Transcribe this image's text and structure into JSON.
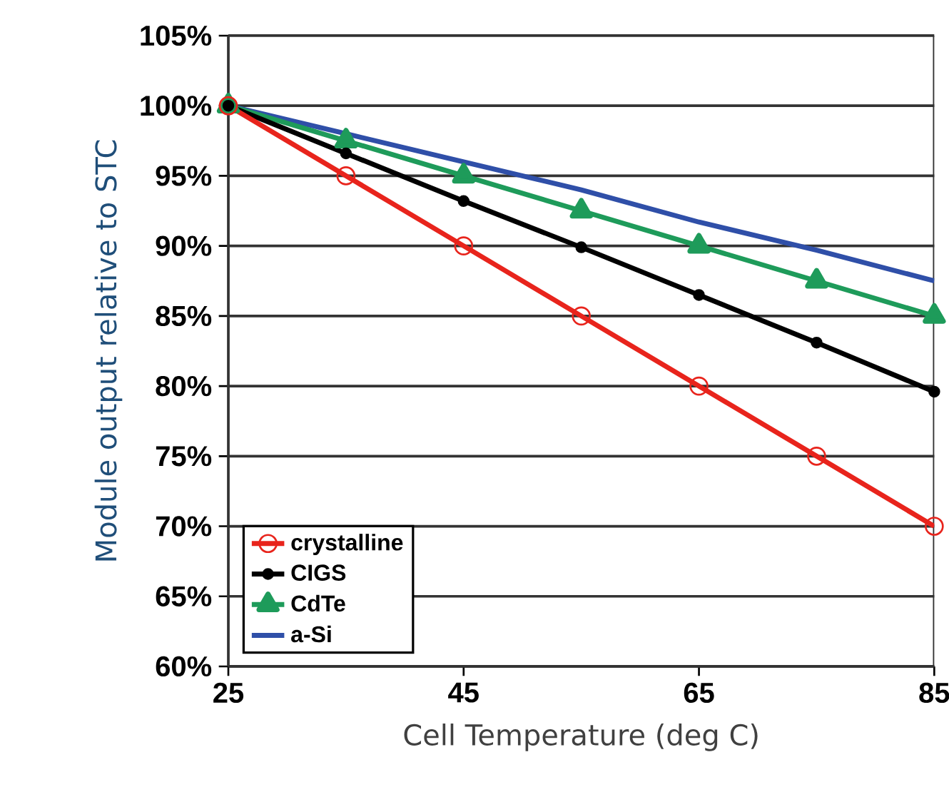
{
  "chart_data": {
    "type": "line",
    "xlabel": "Cell Temperature (deg C)",
    "ylabel": "Module output relative to STC",
    "x": [
      25,
      35,
      45,
      55,
      65,
      75,
      85
    ],
    "series": [
      {
        "name": "crystalline",
        "color": "#e8241c",
        "marker": "circle",
        "values": [
          100,
          95,
          90,
          85,
          80,
          75,
          70
        ]
      },
      {
        "name": "CIGS",
        "color": "#000000",
        "marker": "dot",
        "values": [
          100,
          96.6,
          93.2,
          89.9,
          86.5,
          83.1,
          79.6
        ]
      },
      {
        "name": "CdTe",
        "color": "#1e9b5a",
        "marker": "triangle",
        "values": [
          100,
          97.5,
          95,
          92.5,
          90,
          87.5,
          85
        ]
      },
      {
        "name": "a-Si",
        "color": "#2f4fa8",
        "marker": "none",
        "values": [
          100,
          98,
          96,
          94,
          91.7,
          89.7,
          87.5
        ]
      }
    ],
    "xlim": [
      25,
      85
    ],
    "xticks": [
      25,
      45,
      65,
      85
    ],
    "ylim": [
      60,
      105
    ],
    "yticks": [
      {
        "value": 60,
        "label": "60%"
      },
      {
        "value": 65,
        "label": "65%"
      },
      {
        "value": 70,
        "label": "70%"
      },
      {
        "value": 75,
        "label": "75%"
      },
      {
        "value": 80,
        "label": "80%"
      },
      {
        "value": 85,
        "label": "85%"
      },
      {
        "value": 90,
        "label": "90%"
      },
      {
        "value": 95,
        "label": "95%"
      },
      {
        "value": 100,
        "label": "100%"
      },
      {
        "value": 105,
        "label": "105%"
      }
    ],
    "grid": "y",
    "legend": "bottom left",
    "line_style": "solid"
  }
}
